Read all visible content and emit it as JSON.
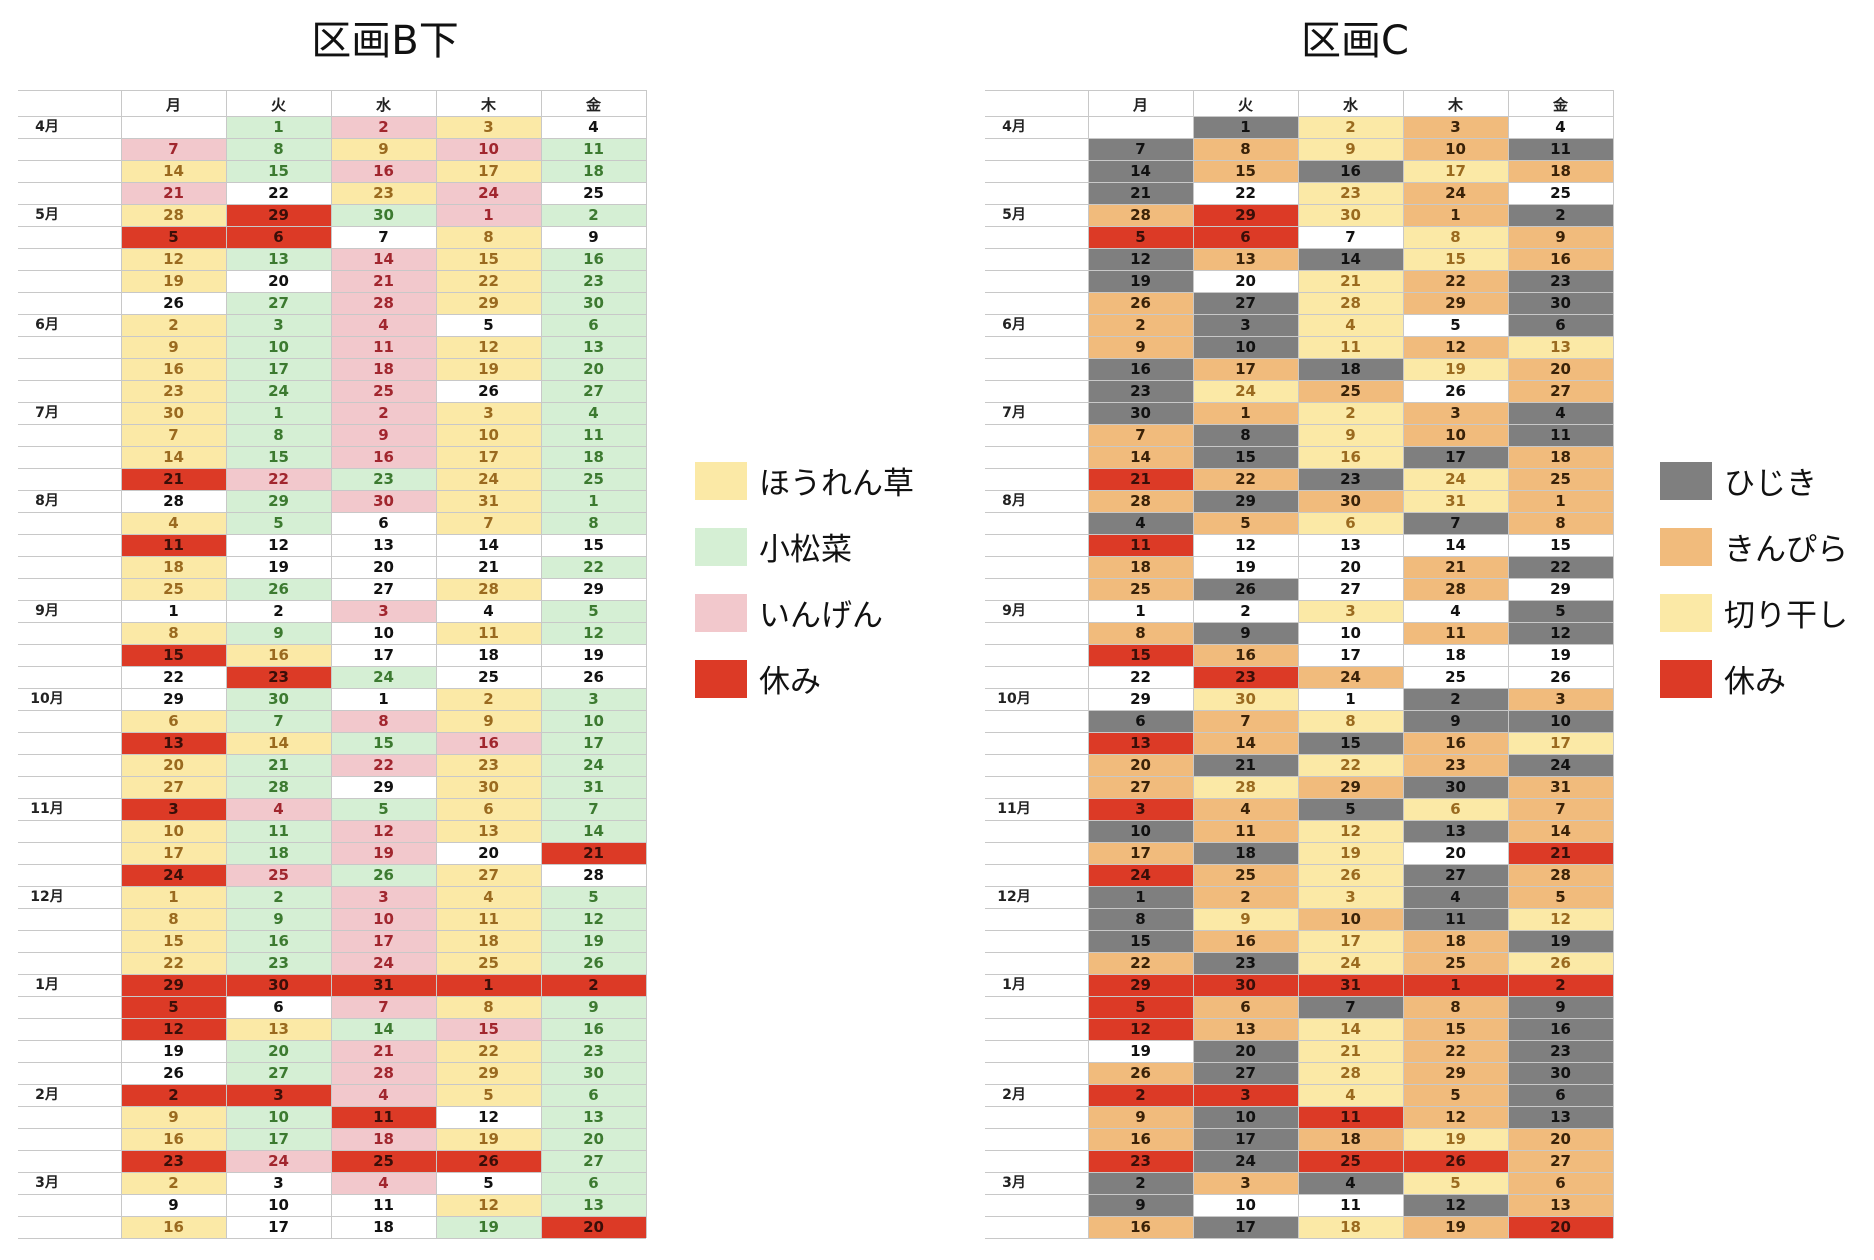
{
  "colors": {
    "y": {
      "bg": "#fbe9a6",
      "fg": "#9a6a1f"
    },
    "g": {
      "bg": "#d5efd4",
      "fg": "#3c7a30"
    },
    "p": {
      "bg": "#f2c8cc",
      "fg": "#a1262e"
    },
    "r": {
      "bg": "#dc3a26",
      "fg": "#3a0e08"
    },
    "w": {
      "bg": "#ffffff",
      "fg": "#111111"
    },
    "k": {
      "bg": "#7f7f7f",
      "fg": "#111111"
    },
    "o": {
      "bg": "#f1bb7c",
      "fg": "#3a2208"
    },
    "c": {
      "bg": "#fbe9a6",
      "fg": "#9a6a1f"
    }
  },
  "weekdays": [
    "月",
    "火",
    "水",
    "木",
    "金"
  ],
  "months": [
    {
      "row": 0,
      "label": "4月"
    },
    {
      "row": 4,
      "label": "5月"
    },
    {
      "row": 9,
      "label": "6月"
    },
    {
      "row": 13,
      "label": "7月"
    },
    {
      "row": 17,
      "label": "8月"
    },
    {
      "row": 22,
      "label": "9月"
    },
    {
      "row": 26,
      "label": "10月"
    },
    {
      "row": 31,
      "label": "11月"
    },
    {
      "row": 35,
      "label": "12月"
    },
    {
      "row": 39,
      "label": "1月"
    },
    {
      "row": 44,
      "label": "2月"
    },
    {
      "row": 48,
      "label": "3月"
    }
  ],
  "panels": [
    {
      "title": "区画B下",
      "legend": [
        {
          "label": "ほうれん草",
          "key": "y"
        },
        {
          "label": "小松菜",
          "key": "g"
        },
        {
          "label": "いんげん",
          "key": "p"
        },
        {
          "label": "休み",
          "key": "r"
        }
      ],
      "rows": [
        [
          "",
          "g1",
          "p2",
          "y3",
          "w4"
        ],
        [
          "p7",
          "g8",
          "y9",
          "p10",
          "g11"
        ],
        [
          "y14",
          "g15",
          "p16",
          "y17",
          "g18"
        ],
        [
          "p21",
          "w22",
          "y23",
          "p24",
          "w25"
        ],
        [
          "y28",
          "r29",
          "g30",
          "p1",
          "g2"
        ],
        [
          "r5",
          "r6",
          "w7",
          "y8",
          "w9"
        ],
        [
          "y12",
          "g13",
          "p14",
          "y15",
          "g16"
        ],
        [
          "y19",
          "w20",
          "p21",
          "y22",
          "g23"
        ],
        [
          "w26",
          "g27",
          "p28",
          "y29",
          "g30"
        ],
        [
          "y2",
          "g3",
          "p4",
          "w5",
          "g6"
        ],
        [
          "y9",
          "g10",
          "p11",
          "y12",
          "g13"
        ],
        [
          "y16",
          "g17",
          "p18",
          "y19",
          "g20"
        ],
        [
          "y23",
          "g24",
          "p25",
          "w26",
          "g27"
        ],
        [
          "y30",
          "g1",
          "p2",
          "y3",
          "g4"
        ],
        [
          "y7",
          "g8",
          "p9",
          "y10",
          "g11"
        ],
        [
          "y14",
          "g15",
          "p16",
          "y17",
          "g18"
        ],
        [
          "r21",
          "p22",
          "g23",
          "y24",
          "g25"
        ],
        [
          "w28",
          "g29",
          "p30",
          "y31",
          "g1"
        ],
        [
          "y4",
          "g5",
          "w6",
          "y7",
          "g8"
        ],
        [
          "r11",
          "w12",
          "w13",
          "w14",
          "w15"
        ],
        [
          "y18",
          "w19",
          "w20",
          "w21",
          "g22"
        ],
        [
          "y25",
          "g26",
          "w27",
          "y28",
          "w29"
        ],
        [
          "w1",
          "w2",
          "p3",
          "w4",
          "g5"
        ],
        [
          "y8",
          "g9",
          "w10",
          "y11",
          "g12"
        ],
        [
          "r15",
          "y16",
          "w17",
          "w18",
          "w19"
        ],
        [
          "w22",
          "r23",
          "g24",
          "w25",
          "w26"
        ],
        [
          "w29",
          "g30",
          "w1",
          "y2",
          "g3"
        ],
        [
          "y6",
          "g7",
          "p8",
          "y9",
          "g10"
        ],
        [
          "r13",
          "y14",
          "g15",
          "p16",
          "g17"
        ],
        [
          "y20",
          "g21",
          "p22",
          "y23",
          "g24"
        ],
        [
          "y27",
          "g28",
          "w29",
          "y30",
          "g31"
        ],
        [
          "r3",
          "p4",
          "g5",
          "y6",
          "g7"
        ],
        [
          "y10",
          "g11",
          "p12",
          "y13",
          "g14"
        ],
        [
          "y17",
          "g18",
          "p19",
          "w20",
          "r21"
        ],
        [
          "r24",
          "p25",
          "g26",
          "y27",
          "w28"
        ],
        [
          "y1",
          "g2",
          "p3",
          "y4",
          "g5"
        ],
        [
          "y8",
          "g9",
          "p10",
          "y11",
          "g12"
        ],
        [
          "y15",
          "g16",
          "p17",
          "y18",
          "g19"
        ],
        [
          "y22",
          "g23",
          "p24",
          "y25",
          "g26"
        ],
        [
          "r29",
          "r30",
          "r31",
          "r1",
          "r2"
        ],
        [
          "r5",
          "w6",
          "p7",
          "y8",
          "g9"
        ],
        [
          "r12",
          "y13",
          "g14",
          "p15",
          "g16"
        ],
        [
          "w19",
          "g20",
          "p21",
          "y22",
          "g23"
        ],
        [
          "w26",
          "g27",
          "p28",
          "y29",
          "g30"
        ],
        [
          "r2",
          "r3",
          "p4",
          "y5",
          "g6"
        ],
        [
          "y9",
          "g10",
          "r11",
          "w12",
          "g13"
        ],
        [
          "y16",
          "g17",
          "p18",
          "y19",
          "g20"
        ],
        [
          "r23",
          "p24",
          "r25",
          "r26",
          "g27"
        ],
        [
          "y2",
          "w3",
          "p4",
          "w5",
          "g6"
        ],
        [
          "w9",
          "w10",
          "w11",
          "y12",
          "g13"
        ],
        [
          "y16",
          "w17",
          "w18",
          "g19",
          "r20"
        ]
      ]
    },
    {
      "title": "区画C",
      "legend": [
        {
          "label": "ひじき",
          "key": "k"
        },
        {
          "label": "きんぴら",
          "key": "o"
        },
        {
          "label": "切り干し",
          "key": "c"
        },
        {
          "label": "休み",
          "key": "r"
        }
      ],
      "rows": [
        [
          "",
          "k1",
          "c2",
          "o3",
          "w4"
        ],
        [
          "k7",
          "o8",
          "c9",
          "o10",
          "k11"
        ],
        [
          "k14",
          "o15",
          "k16",
          "c17",
          "o18"
        ],
        [
          "k21",
          "w22",
          "c23",
          "o24",
          "w25"
        ],
        [
          "o28",
          "r29",
          "c30",
          "o1",
          "k2"
        ],
        [
          "r5",
          "r6",
          "w7",
          "c8",
          "o9"
        ],
        [
          "k12",
          "o13",
          "k14",
          "c15",
          "o16"
        ],
        [
          "k19",
          "w20",
          "c21",
          "o22",
          "k23"
        ],
        [
          "o26",
          "k27",
          "c28",
          "o29",
          "k30"
        ],
        [
          "o2",
          "k3",
          "c4",
          "w5",
          "k6"
        ],
        [
          "o9",
          "k10",
          "c11",
          "o12",
          "c13"
        ],
        [
          "k16",
          "o17",
          "k18",
          "c19",
          "o20"
        ],
        [
          "k23",
          "c24",
          "o25",
          "w26",
          "o27"
        ],
        [
          "k30",
          "o1",
          "c2",
          "o3",
          "k4"
        ],
        [
          "o7",
          "k8",
          "c9",
          "o10",
          "k11"
        ],
        [
          "o14",
          "k15",
          "c16",
          "k17",
          "o18"
        ],
        [
          "r21",
          "o22",
          "k23",
          "c24",
          "o25"
        ],
        [
          "o28",
          "k29",
          "o30",
          "c31",
          "o1"
        ],
        [
          "k4",
          "o5",
          "c6",
          "k7",
          "o8"
        ],
        [
          "r11",
          "w12",
          "w13",
          "w14",
          "w15"
        ],
        [
          "o18",
          "w19",
          "w20",
          "o21",
          "k22"
        ],
        [
          "o25",
          "k26",
          "w27",
          "o28",
          "w29"
        ],
        [
          "w1",
          "w2",
          "c3",
          "w4",
          "k5"
        ],
        [
          "o8",
          "k9",
          "w10",
          "o11",
          "k12"
        ],
        [
          "r15",
          "o16",
          "w17",
          "w18",
          "w19"
        ],
        [
          "w22",
          "r23",
          "o24",
          "w25",
          "w26"
        ],
        [
          "w29",
          "c30",
          "w1",
          "k2",
          "o3"
        ],
        [
          "k6",
          "o7",
          "c8",
          "k9",
          "k10"
        ],
        [
          "r13",
          "o14",
          "k15",
          "o16",
          "c17"
        ],
        [
          "o20",
          "k21",
          "c22",
          "o23",
          "k24"
        ],
        [
          "o27",
          "c28",
          "o29",
          "k30",
          "o31"
        ],
        [
          "r3",
          "o4",
          "k5",
          "c6",
          "o7"
        ],
        [
          "k10",
          "o11",
          "c12",
          "k13",
          "o14"
        ],
        [
          "o17",
          "k18",
          "c19",
          "w20",
          "r21"
        ],
        [
          "r24",
          "o25",
          "c26",
          "k27",
          "o28"
        ],
        [
          "k1",
          "o2",
          "c3",
          "k4",
          "o5"
        ],
        [
          "k8",
          "c9",
          "o10",
          "k11",
          "c12"
        ],
        [
          "k15",
          "o16",
          "c17",
          "o18",
          "k19"
        ],
        [
          "o22",
          "k23",
          "c24",
          "o25",
          "c26"
        ],
        [
          "r29",
          "r30",
          "r31",
          "r1",
          "r2"
        ],
        [
          "r5",
          "o6",
          "k7",
          "o8",
          "k9"
        ],
        [
          "r12",
          "o13",
          "c14",
          "o15",
          "k16"
        ],
        [
          "w19",
          "k20",
          "c21",
          "o22",
          "k23"
        ],
        [
          "o26",
          "k27",
          "c28",
          "o29",
          "k30"
        ],
        [
          "r2",
          "r3",
          "c4",
          "o5",
          "k6"
        ],
        [
          "o9",
          "k10",
          "r11",
          "o12",
          "k13"
        ],
        [
          "o16",
          "k17",
          "o18",
          "c19",
          "o20"
        ],
        [
          "r23",
          "k24",
          "r25",
          "r26",
          "o27"
        ],
        [
          "k2",
          "o3",
          "k4",
          "c5",
          "o6"
        ],
        [
          "k9",
          "w10",
          "w11",
          "k12",
          "o13"
        ],
        [
          "o16",
          "k17",
          "c18",
          "o19",
          "r20"
        ]
      ]
    }
  ]
}
